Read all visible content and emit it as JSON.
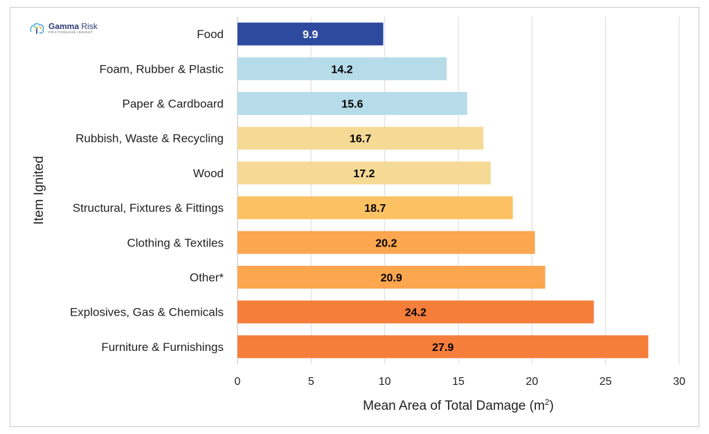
{
  "logo": {
    "brand_bold": "Gamma",
    "brand_light": " Risk",
    "tagline": "FRICTIONLESS INSIGHT",
    "icon": "tree-logo-icon",
    "colors": [
      "#3aa0d8",
      "#6cc04a",
      "#f2a33a",
      "#2a3a78"
    ]
  },
  "chart_data": {
    "type": "bar",
    "orientation": "horizontal",
    "title": "",
    "xlabel": "Mean Area of Total Damage (m",
    "xlabel_sup": "2",
    "xlabel_close": ")",
    "ylabel": "Item Ignited",
    "xlim": [
      0,
      30
    ],
    "xticks": [
      "0",
      "5",
      "10",
      "15",
      "20",
      "25",
      "30"
    ],
    "grid": "vertical",
    "categories": [
      "Food",
      "Foam, Rubber & Plastic",
      "Paper & Cardboard",
      "Rubbish, Waste & Recycling",
      "Wood",
      "Structural, Fixtures & Fittings",
      "Clothing & Textiles",
      "Other*",
      "Explosives, Gas & Chemicals",
      "Furniture & Furnishings"
    ],
    "values": [
      9.9,
      14.2,
      15.6,
      16.7,
      17.2,
      18.7,
      20.2,
      20.9,
      24.2,
      27.9
    ],
    "data_labels": [
      "9.9",
      "14.2",
      "15.6",
      "16.7",
      "17.2",
      "18.7",
      "20.2",
      "20.9",
      "24.2",
      "27.9"
    ],
    "colors": [
      "#2e4a9e",
      "#b6dbe9",
      "#b6dbe9",
      "#f5da95",
      "#f5da95",
      "#fcc163",
      "#fca64f",
      "#fca64f",
      "#f57e3a",
      "#f57e3a"
    ],
    "label_colors": [
      "#ffffff",
      "#000000",
      "#000000",
      "#000000",
      "#000000",
      "#000000",
      "#000000",
      "#000000",
      "#000000",
      "#000000"
    ]
  }
}
